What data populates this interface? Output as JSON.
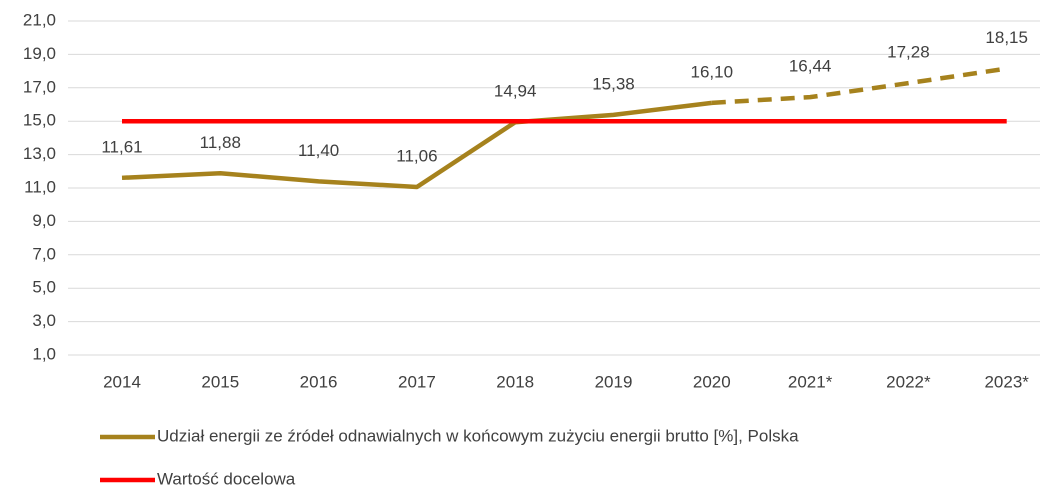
{
  "chart_data": {
    "type": "line",
    "categories": [
      "2014",
      "2015",
      "2016",
      "2017",
      "2018",
      "2019",
      "2020",
      "2021*",
      "2022*",
      "2023*"
    ],
    "series": [
      {
        "name": "Udział energii ze źródeł odnawialnych w końcowym zużyciu energii brutto [%], Polska",
        "color": "#a6821d",
        "values": [
          11.61,
          11.88,
          11.4,
          11.06,
          14.94,
          15.38,
          16.1,
          16.44,
          17.28,
          18.15
        ],
        "value_labels": [
          "11,61",
          "11,88",
          "11,40",
          "11,06",
          "14,94",
          "15,38",
          "16,10",
          "16,44",
          "17,28",
          "18,15"
        ],
        "dashed_from": "2020"
      },
      {
        "name": "Wartość docelowa",
        "color": "#ff0000",
        "values": [
          15,
          15,
          15,
          15,
          15,
          15,
          15,
          15,
          15,
          15
        ]
      }
    ],
    "ylim": [
      1,
      21
    ],
    "yticks": [
      {
        "value": 1,
        "label": "1,0"
      },
      {
        "value": 3,
        "label": "3,0"
      },
      {
        "value": 5,
        "label": "5,0"
      },
      {
        "value": 7,
        "label": "7,0"
      },
      {
        "value": 9,
        "label": "9,0"
      },
      {
        "value": 11,
        "label": "11,0"
      },
      {
        "value": 13,
        "label": "13,0"
      },
      {
        "value": 15,
        "label": "15,0"
      },
      {
        "value": 17,
        "label": "17,0"
      },
      {
        "value": 19,
        "label": "19,0"
      },
      {
        "value": 21,
        "label": "21,0"
      }
    ],
    "grid": true,
    "legend": "bottom"
  }
}
